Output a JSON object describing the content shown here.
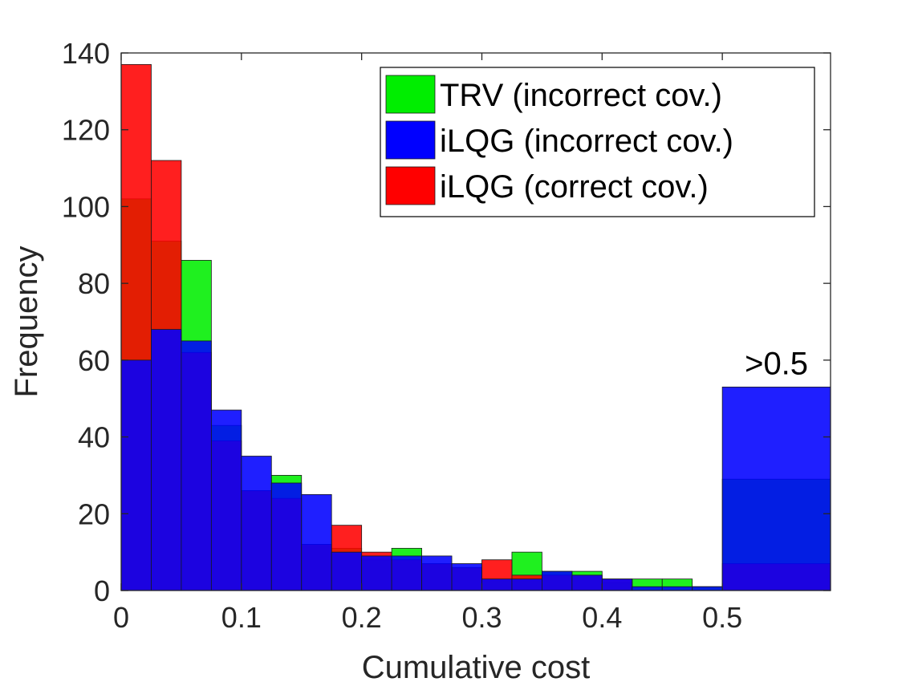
{
  "chart_data": {
    "type": "bar",
    "title": "",
    "xlabel": "Cumulative cost",
    "ylabel": "Frequency",
    "xlim": [
      0,
      0.59
    ],
    "ylim": [
      0,
      140
    ],
    "xticks": [
      "0",
      "0.1",
      "0.2",
      "0.3",
      "0.4",
      "0.5"
    ],
    "xtick_values": [
      0,
      0.1,
      0.2,
      0.3,
      0.4,
      0.5
    ],
    "yticks": [
      "0",
      "20",
      "40",
      "60",
      "80",
      "100",
      "120",
      "140"
    ],
    "ytick_values": [
      0,
      20,
      40,
      60,
      80,
      100,
      120,
      140
    ],
    "bin_width": 0.025,
    "bin_starts": [
      0,
      0.025,
      0.05,
      0.075,
      0.1,
      0.125,
      0.15,
      0.175,
      0.2,
      0.225,
      0.25,
      0.275,
      0.3,
      0.325,
      0.35,
      0.375,
      0.4,
      0.425,
      0.45,
      0.475
    ],
    "overflow_bin": {
      "label": ">0.5",
      "x_range": [
        0.5,
        0.59
      ]
    },
    "series": [
      {
        "name": "TRV (incorrect cov.)",
        "color": "#00ee00",
        "values": [
          102,
          91,
          86,
          43,
          26,
          30,
          12,
          11,
          8,
          11,
          7,
          6,
          3,
          10,
          5,
          5,
          2,
          3,
          3,
          1
        ],
        "overflow": 29
      },
      {
        "name": "iLQG (incorrect cov.)",
        "color": "#0000ff",
        "values": [
          60,
          68,
          65,
          47,
          35,
          28,
          25,
          10,
          9,
          9,
          9,
          7,
          3,
          3,
          5,
          4,
          3,
          1,
          1,
          1
        ],
        "overflow": 53
      },
      {
        "name": "iLQG (correct cov.)",
        "color": "#ff0000",
        "values": [
          137,
          112,
          62,
          39,
          26,
          24,
          12,
          17,
          10,
          8,
          7,
          6,
          8,
          4,
          4,
          4,
          3,
          0,
          0,
          0
        ],
        "overflow": 7
      }
    ],
    "legend_position": "top-right",
    "grid": false
  }
}
